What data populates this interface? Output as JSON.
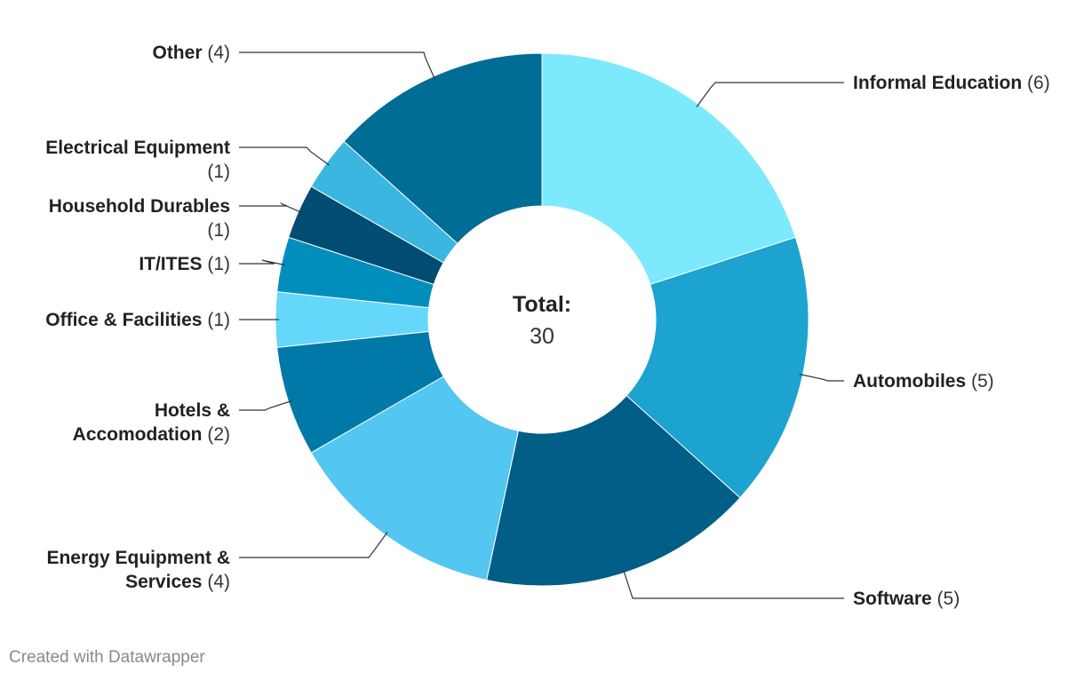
{
  "chart_data": {
    "type": "pie",
    "variant": "donut",
    "center_label": {
      "title": "Total:",
      "value": "30"
    },
    "slices": [
      {
        "name": "Informal Education",
        "value": 6,
        "color": "#7de9fd"
      },
      {
        "name": "Automobiles",
        "value": 5,
        "color": "#1ca3d0"
      },
      {
        "name": "Software",
        "value": 5,
        "color": "#005e87"
      },
      {
        "name": "Energy Equipment & Services",
        "value": 4,
        "color": "#53c6f2"
      },
      {
        "name": "Hotels & Accomodation",
        "value": 2,
        "color": "#0079a8"
      },
      {
        "name": "Office & Facilities",
        "value": 1,
        "color": "#65d7fb"
      },
      {
        "name": "IT/ITES",
        "value": 1,
        "color": "#008fbd"
      },
      {
        "name": "Household Durables",
        "value": 1,
        "color": "#004d71"
      },
      {
        "name": "Electrical Equipment",
        "value": 1,
        "color": "#3bb6e1"
      },
      {
        "name": "Other",
        "value": 4,
        "color": "#006d96"
      }
    ]
  },
  "footer": {
    "credit": "Created with Datawrapper"
  }
}
